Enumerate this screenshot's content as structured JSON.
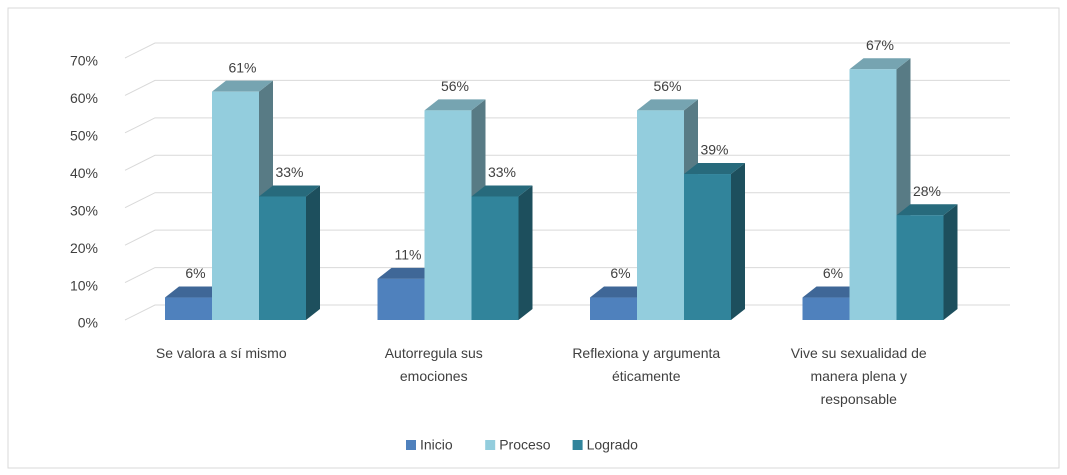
{
  "chart_data": {
    "type": "bar3d",
    "categories": [
      "Se valora a sí mismo",
      "Autorregula sus emociones",
      "Reflexiona y argumenta éticamente",
      "Vive su sexualidad de manera plena y responsable"
    ],
    "series": [
      {
        "name": "Inicio",
        "color": "#4f81bd",
        "values": [
          6,
          11,
          6,
          6
        ],
        "value_labels": [
          "6%",
          "11%",
          "6%",
          "6%"
        ]
      },
      {
        "name": "Proceso",
        "color": "#93cddd",
        "values": [
          61,
          56,
          56,
          67
        ],
        "value_labels": [
          "61%",
          "56%",
          "56%",
          "67%"
        ]
      },
      {
        "name": "Logrado",
        "color": "#31849b",
        "values": [
          33,
          33,
          39,
          28
        ],
        "value_labels": [
          "33%",
          "33%",
          "39%",
          "28%"
        ]
      }
    ],
    "ylim": [
      0,
      70
    ],
    "yticks": [
      {
        "value": 0,
        "label": "0%"
      },
      {
        "value": 10,
        "label": "10%"
      },
      {
        "value": 20,
        "label": "20%"
      },
      {
        "value": 30,
        "label": "30%"
      },
      {
        "value": 40,
        "label": "40%"
      },
      {
        "value": 50,
        "label": "50%"
      },
      {
        "value": 60,
        "label": "60%"
      },
      {
        "value": 70,
        "label": "70%"
      }
    ],
    "grid": true,
    "legend": "bottom"
  }
}
